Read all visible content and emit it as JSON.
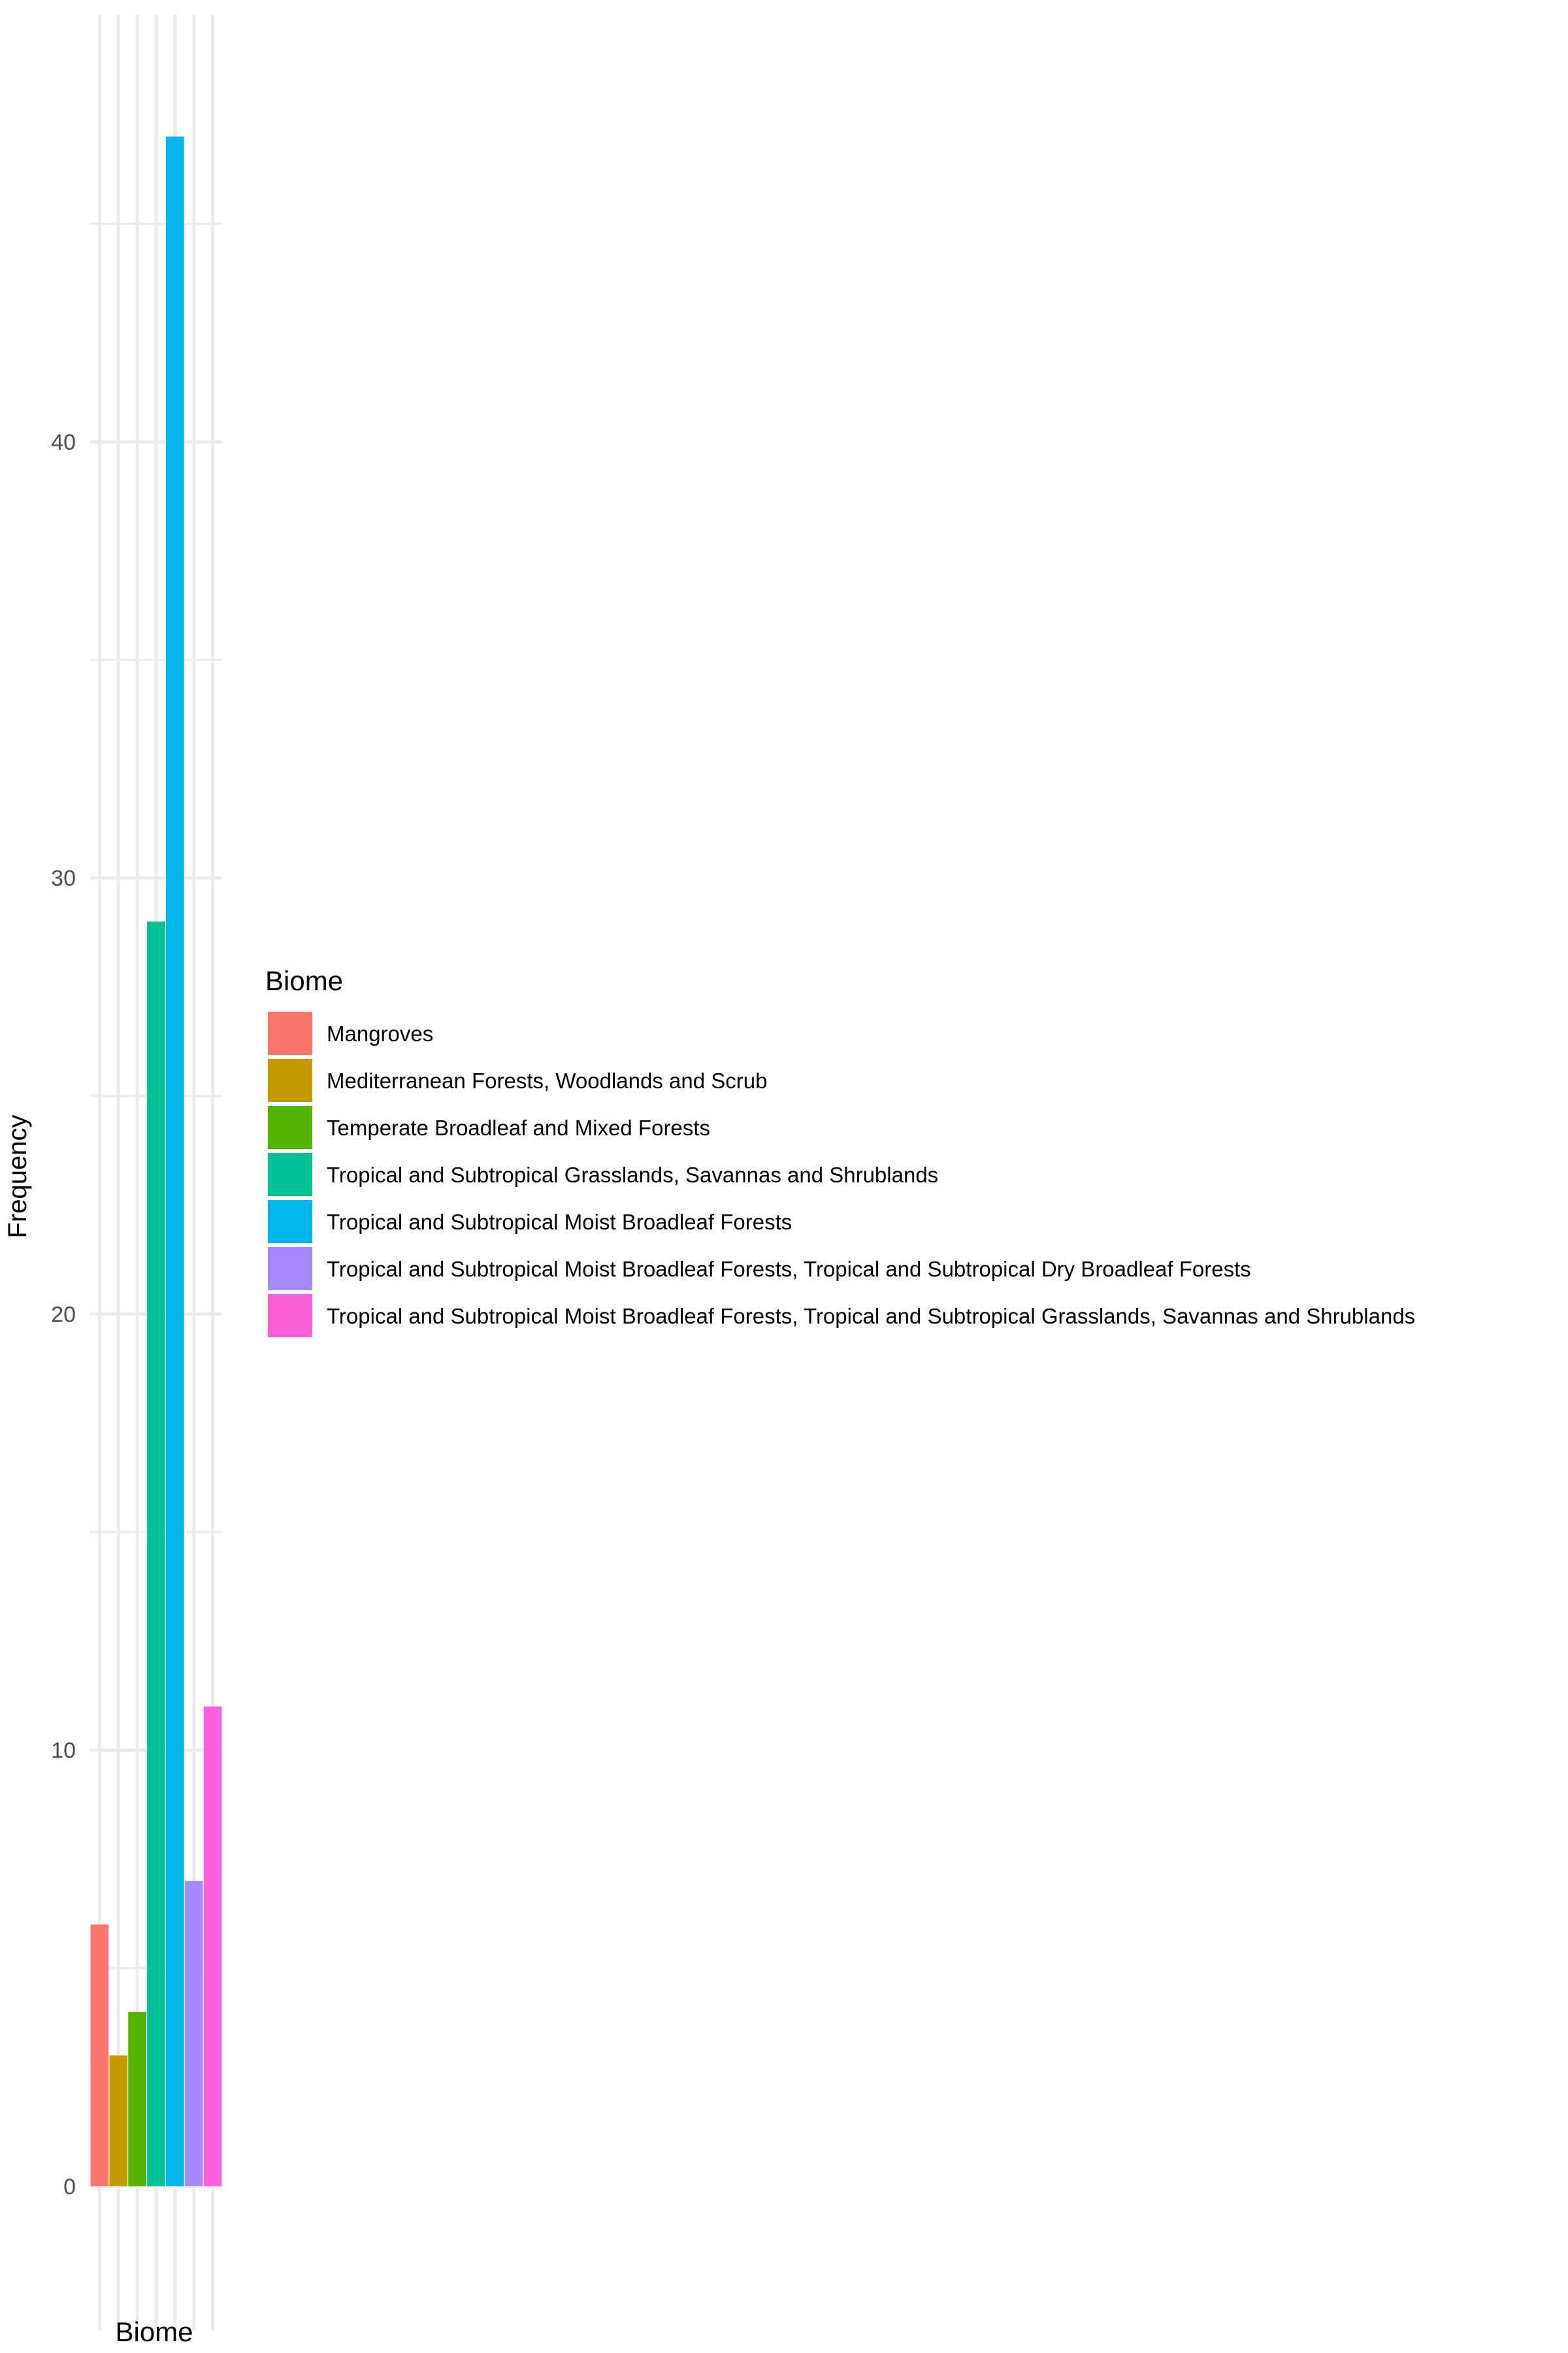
{
  "chart_data": {
    "type": "bar",
    "title": "",
    "xlabel": "Biome",
    "ylabel": "Frequency",
    "ylim": [
      -3.3,
      49.8
    ],
    "yticks": [
      0,
      10,
      20,
      30,
      40
    ],
    "grid": true,
    "legend_title": "Biome",
    "legend_position": "right",
    "categories": [
      "Mangroves",
      "Mediterranean Forests, Woodlands and Scrub",
      "Temperate Broadleaf and Mixed Forests",
      "Tropical and Subtropical Grasslands, Savannas and Shrublands",
      "Tropical and Subtropical Moist Broadleaf Forests",
      "Tropical and Subtropical Moist Broadleaf Forests, Tropical and Subtropical Dry Broadleaf Forests",
      "Tropical and Subtropical Moist Broadleaf Forests, Tropical and Subtropical Grasslands, Savannas and Shrublands"
    ],
    "values": [
      6,
      3,
      4,
      29,
      47,
      7,
      11
    ],
    "colors": [
      "#F8766D",
      "#C49A00",
      "#53B400",
      "#00C094",
      "#00B6EB",
      "#A58AFF",
      "#FB61D7"
    ]
  }
}
